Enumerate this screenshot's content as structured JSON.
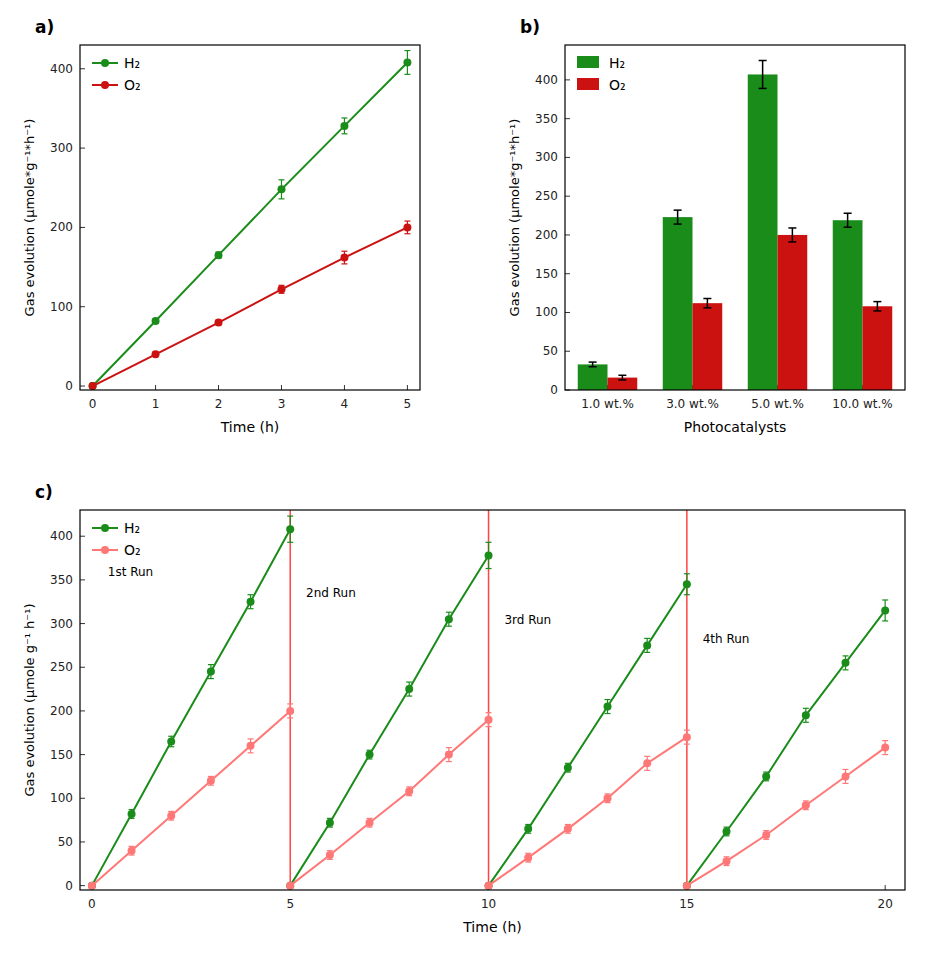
{
  "chart_data": [
    {
      "type": "line",
      "title": "a)",
      "xlabel": "Time (h)",
      "ylabel": "Gas evolution (μmole*g⁻¹*h⁻¹)",
      "x": [
        0,
        1,
        2,
        3,
        4,
        5
      ],
      "series": [
        {
          "name": "H₂",
          "color": "#1a8c1a",
          "marker": "circle",
          "values": [
            0,
            82,
            165,
            248,
            328,
            408
          ],
          "errors": [
            2,
            3,
            4,
            12,
            10,
            15
          ]
        },
        {
          "name": "O₂",
          "color": "#cc1111",
          "marker": "circle",
          "values": [
            0,
            40,
            80,
            122,
            162,
            200
          ],
          "errors": [
            2,
            3,
            3,
            5,
            8,
            8
          ]
        }
      ],
      "xlim": [
        -0.2,
        5.2
      ],
      "ylim": [
        -5,
        430
      ],
      "xticks": [
        0,
        1,
        2,
        3,
        4,
        5
      ],
      "yticks": [
        0,
        100,
        200,
        300,
        400
      ],
      "grid": false,
      "legend": "upper left"
    },
    {
      "type": "bar",
      "title": "b)",
      "xlabel": "Photocatalysts",
      "ylabel": "Gas evolution (μmole*g⁻¹*h⁻¹)",
      "categories": [
        "1.0 wt.%",
        "3.0 wt.%",
        "5.0 wt.%",
        "10.0 wt.%"
      ],
      "series": [
        {
          "name": "H₂",
          "color": "#1a8c1a",
          "values": [
            33,
            223,
            407,
            219
          ],
          "errors": [
            3,
            9,
            18,
            9
          ]
        },
        {
          "name": "O₂",
          "color": "#cc1111",
          "values": [
            16,
            112,
            200,
            108
          ],
          "errors": [
            3,
            6,
            9,
            6
          ]
        }
      ],
      "ylim": [
        0,
        445
      ],
      "yticks": [
        0,
        50,
        100,
        150,
        200,
        250,
        300,
        350,
        400
      ],
      "grid": false,
      "legend": "upper left"
    },
    {
      "type": "line",
      "title": "c)",
      "xlabel": "Time (h)",
      "ylabel": "Gas evolution (μmole g⁻¹ h⁻¹)",
      "series": [
        {
          "name": "H₂",
          "color": "#1a8c1a",
          "marker": "circle",
          "x": [
            0,
            1,
            2,
            3,
            4,
            5
          ],
          "values": [
            0,
            82,
            165,
            245,
            325,
            408
          ],
          "errors": [
            2,
            5,
            6,
            8,
            8,
            15
          ]
        },
        {
          "name": "O₂",
          "color": "#ff7777",
          "marker": "circle",
          "x": [
            0,
            1,
            2,
            3,
            4,
            5
          ],
          "values": [
            0,
            40,
            80,
            120,
            160,
            200
          ],
          "errors": [
            2,
            5,
            5,
            5,
            8,
            8
          ]
        },
        {
          "name": "H₂",
          "color": "#1a8c1a",
          "marker": "circle",
          "x": [
            5,
            6,
            7,
            8,
            9,
            10
          ],
          "values": [
            0,
            72,
            150,
            225,
            305,
            378
          ],
          "errors": [
            2,
            5,
            5,
            8,
            8,
            15
          ]
        },
        {
          "name": "O₂",
          "color": "#ff7777",
          "marker": "circle",
          "x": [
            5,
            6,
            7,
            8,
            9,
            10
          ],
          "values": [
            0,
            35,
            72,
            108,
            150,
            190
          ],
          "errors": [
            2,
            5,
            5,
            5,
            8,
            8
          ]
        },
        {
          "name": "H₂",
          "color": "#1a8c1a",
          "marker": "circle",
          "x": [
            10,
            11,
            12,
            13,
            14,
            15
          ],
          "values": [
            0,
            65,
            135,
            205,
            275,
            345
          ],
          "errors": [
            2,
            5,
            5,
            8,
            8,
            12
          ]
        },
        {
          "name": "O₂",
          "color": "#ff7777",
          "marker": "circle",
          "x": [
            10,
            11,
            12,
            13,
            14,
            15
          ],
          "values": [
            0,
            32,
            65,
            100,
            140,
            170
          ],
          "errors": [
            2,
            5,
            5,
            5,
            8,
            8
          ]
        },
        {
          "name": "H₂",
          "color": "#1a8c1a",
          "marker": "circle",
          "x": [
            15,
            16,
            17,
            18,
            19,
            20
          ],
          "values": [
            0,
            62,
            125,
            195,
            255,
            315
          ],
          "errors": [
            2,
            5,
            5,
            8,
            8,
            12
          ]
        },
        {
          "name": "O₂",
          "color": "#ff7777",
          "marker": "circle",
          "x": [
            15,
            16,
            17,
            18,
            19,
            20
          ],
          "values": [
            0,
            28,
            58,
            92,
            125,
            158
          ],
          "errors": [
            2,
            5,
            5,
            5,
            8,
            8
          ]
        }
      ],
      "vlines": [
        {
          "x": 5,
          "color": "#ff4444"
        },
        {
          "x": 10,
          "color": "#ff4444"
        },
        {
          "x": 15,
          "color": "#ff4444"
        }
      ],
      "annotations": [
        {
          "text": "1st Run",
          "x": 0.4,
          "y": 355
        },
        {
          "text": "2nd Run",
          "x": 5.4,
          "y": 330
        },
        {
          "text": "3rd Run",
          "x": 10.4,
          "y": 300
        },
        {
          "text": "4th Run",
          "x": 15.4,
          "y": 278
        }
      ],
      "xlim": [
        -0.3,
        20.5
      ],
      "ylim": [
        -5,
        430
      ],
      "xticks": [
        0,
        5,
        10,
        15,
        20
      ],
      "yticks": [
        0,
        50,
        100,
        150,
        200,
        250,
        300,
        350,
        400
      ],
      "grid": false,
      "legend": "upper left"
    }
  ]
}
